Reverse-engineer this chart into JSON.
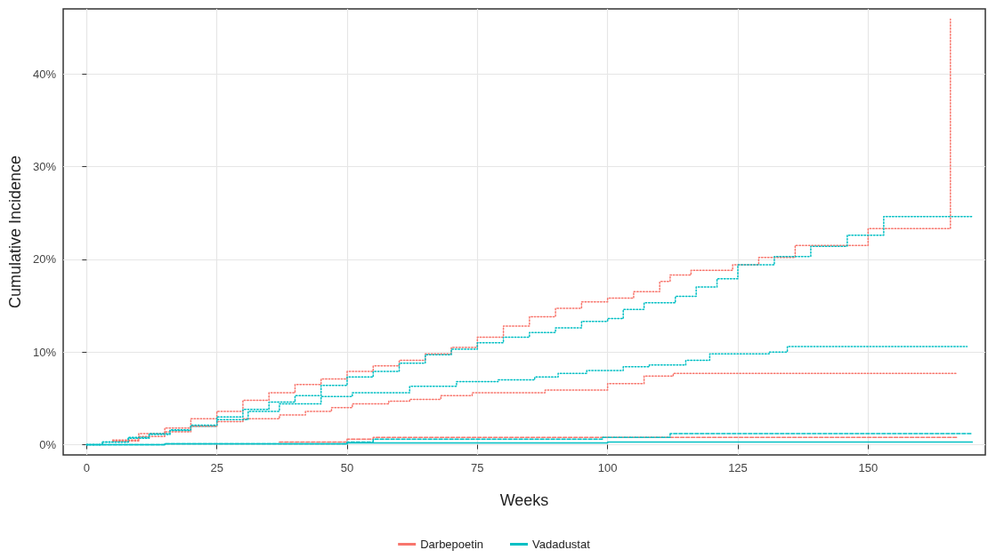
{
  "chart_data": {
    "type": "step",
    "xlabel": "Weeks",
    "ylabel": "Cumulative Incidence",
    "xlim": [
      -4.5,
      172.5
    ],
    "xticks": [
      0,
      25,
      50,
      75,
      100,
      125,
      150
    ],
    "ylim": [
      -1.1,
      47
    ],
    "yticks": [
      {
        "value": 0,
        "label": "0%"
      },
      {
        "value": 10,
        "label": "10%"
      },
      {
        "value": 20,
        "label": "20%"
      },
      {
        "value": 30,
        "label": "30%"
      },
      {
        "value": 40,
        "label": "40%"
      }
    ],
    "grid": true,
    "legend": "bottom",
    "marker": "none",
    "series": [
      {
        "name": "Darbepoetin",
        "color": "#f8766d",
        "line_style": "dotted",
        "x": [
          5,
          10,
          15,
          20,
          25,
          30,
          35,
          40,
          45,
          50,
          55,
          60,
          65,
          70,
          75,
          80,
          85,
          90,
          95,
          100,
          105,
          110,
          112,
          116,
          124,
          129,
          136,
          150,
          165.8
        ],
        "values": [
          0.5,
          1.2,
          1.8,
          2.8,
          3.6,
          4.8,
          5.6,
          6.5,
          7.1,
          7.9,
          8.5,
          9.1,
          9.8,
          10.5,
          11.6,
          12.8,
          13.8,
          14.7,
          15.4,
          15.8,
          16.5,
          17.6,
          18.3,
          18.8,
          19.4,
          20.2,
          21.5,
          23.3,
          45.9
        ]
      },
      {
        "name": "Vadadustat",
        "color": "#00bfc4",
        "line_style": "dotted",
        "x": [
          0,
          3,
          8,
          12,
          16,
          20,
          25,
          30,
          35,
          40,
          45,
          50,
          55,
          60,
          65,
          70,
          75,
          80,
          85,
          90,
          95,
          100,
          103,
          107,
          113,
          117,
          121,
          125,
          132,
          139,
          146,
          153,
          170
        ],
        "values": [
          0,
          0.3,
          0.7,
          1.1,
          1.5,
          2,
          3,
          3.8,
          4.6,
          5.3,
          6.4,
          7.3,
          7.9,
          8.8,
          9.7,
          10.3,
          11,
          11.6,
          12.1,
          12.6,
          13.3,
          13.6,
          14.6,
          15.3,
          16,
          17,
          17.9,
          19.4,
          20.3,
          21.4,
          22.6,
          24.6,
          24.6
        ]
      },
      {
        "color": "#f8766d",
        "line_style": "dotted",
        "x": [
          5,
          10,
          15,
          20,
          25,
          30,
          37,
          42,
          47,
          51,
          58,
          62,
          68,
          74,
          88,
          100,
          107,
          112.6,
          167
        ],
        "values": [
          0.4,
          0.9,
          1.4,
          2,
          2.5,
          2.8,
          3.2,
          3.6,
          4,
          4.4,
          4.7,
          4.9,
          5.3,
          5.6,
          5.9,
          6.6,
          7.4,
          7.7,
          7.7
        ]
      },
      {
        "color": "#00bfc4",
        "line_style": "dotted",
        "x": [
          0,
          3,
          8,
          12,
          16,
          20,
          25,
          31,
          37,
          45,
          51,
          62,
          71,
          79,
          86,
          90.5,
          96,
          103,
          108,
          115,
          119.6,
          131,
          134.5,
          169
        ],
        "values": [
          0,
          0.3,
          0.8,
          1.2,
          1.6,
          2.1,
          2.7,
          3.6,
          4.4,
          5.2,
          5.6,
          6.3,
          6.8,
          7,
          7.3,
          7.7,
          8,
          8.4,
          8.6,
          9.1,
          9.8,
          10,
          10.6,
          10.6
        ]
      },
      {
        "color": "#f8766d",
        "line_style": "dashed",
        "x": [
          37,
          50,
          55,
          167
        ],
        "values": [
          0.3,
          0.6,
          0.8,
          0.8
        ]
      },
      {
        "color": "#00bfc4",
        "line_style": "dashed",
        "x": [
          0,
          15,
          50,
          55,
          99,
          112,
          170
        ],
        "values": [
          0,
          0.1,
          0.3,
          0.6,
          0.8,
          1.2,
          1.2
        ]
      },
      {
        "color": "#00bfc4",
        "line_style": "solid",
        "x": [
          0,
          15,
          50,
          100,
          170
        ],
        "values": [
          0,
          0.1,
          0.2,
          0.3,
          0.3
        ]
      }
    ]
  }
}
